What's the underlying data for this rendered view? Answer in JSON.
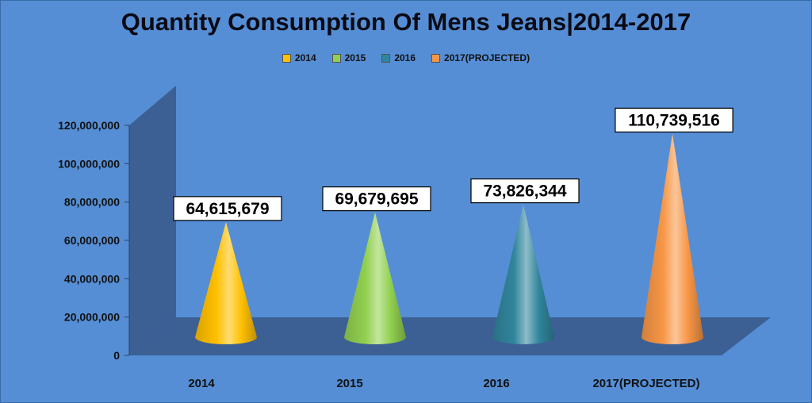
{
  "chart_data": {
    "type": "bar",
    "title": "Quantity Consumption Of Mens Jeans|2014-2017",
    "categories": [
      "2014",
      "2015",
      "2016",
      "2017(PROJECTED)"
    ],
    "values": [
      64615679,
      69679695,
      73826344,
      110739516
    ],
    "data_labels": [
      "64,615,679",
      "69,679,695",
      "73,826,344",
      "110,739,516"
    ],
    "legend": [
      "2014",
      "2015",
      "2016",
      "2017(PROJECTED)"
    ],
    "legend_position": "top",
    "colors": [
      "#ffc000",
      "#92d050",
      "#31859c",
      "#f79646"
    ],
    "ylim": [
      0,
      120000000
    ],
    "yticks": [
      "0",
      "20,000,000",
      "40,000,000",
      "60,000,000",
      "80,000,000",
      "100,000,000",
      "120,000,000"
    ],
    "ytick_values": [
      0,
      20000000,
      40000000,
      60000000,
      80000000,
      100000000,
      120000000
    ],
    "bar_shape": "cone",
    "grid": false,
    "xlabel": "",
    "ylabel": ""
  }
}
